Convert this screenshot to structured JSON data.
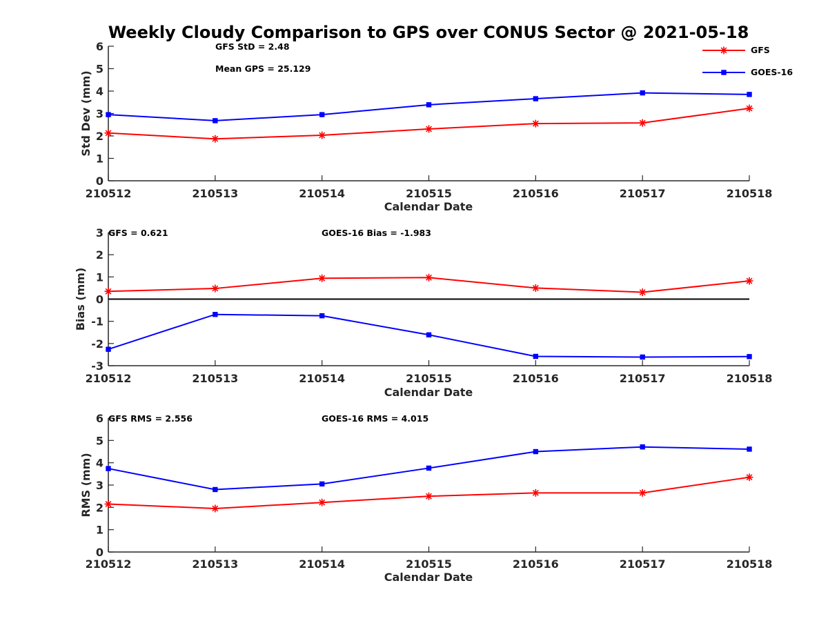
{
  "figure": {
    "title": "Weekly Cloudy Comparison to GPS over CONUS Sector @ 2021-05-18"
  },
  "legend": [
    {
      "name": "GFS",
      "color": "#ff0000",
      "marker": "asterisk"
    },
    {
      "name": "GOES-16",
      "color": "#0000ff",
      "marker": "square"
    }
  ],
  "chart_data": [
    {
      "type": "line",
      "xlabel": "Calendar Date",
      "ylabel": "Std Dev (mm)",
      "categories": [
        "210512",
        "210513",
        "210514",
        "210515",
        "210516",
        "210517",
        "210518"
      ],
      "ylim": [
        0,
        6
      ],
      "yticks": [
        "0",
        "1",
        "2",
        "3",
        "4",
        "5",
        "6"
      ],
      "annotations": [
        "GFS StD = 2.48",
        "Mean GPS = 25.129"
      ],
      "series": [
        {
          "name": "GFS",
          "color": "#ff0000",
          "marker": "asterisk",
          "values": [
            2.13,
            1.87,
            2.03,
            2.31,
            2.55,
            2.58,
            3.23
          ]
        },
        {
          "name": "GOES-16",
          "color": "#0000ff",
          "marker": "square",
          "values": [
            2.95,
            2.68,
            2.95,
            3.39,
            3.66,
            3.92,
            3.85
          ]
        }
      ],
      "zero_line": false
    },
    {
      "type": "line",
      "xlabel": "Calendar Date",
      "ylabel": "Bias (mm)",
      "categories": [
        "210512",
        "210513",
        "210514",
        "210515",
        "210516",
        "210517",
        "210518"
      ],
      "ylim": [
        -3,
        3
      ],
      "yticks": [
        "-3",
        "-2",
        "-1",
        "0",
        "1",
        "2",
        "3"
      ],
      "annotations": [
        "GFS = 0.621",
        "GOES-16 Bias  = -1.983"
      ],
      "series": [
        {
          "name": "GFS",
          "color": "#ff0000",
          "marker": "asterisk",
          "values": [
            0.35,
            0.48,
            0.94,
            0.97,
            0.5,
            0.31,
            0.82
          ]
        },
        {
          "name": "GOES-16",
          "color": "#0000ff",
          "marker": "square",
          "values": [
            -2.26,
            -0.69,
            -0.75,
            -1.61,
            -2.58,
            -2.61,
            -2.59
          ]
        }
      ],
      "zero_line": true
    },
    {
      "type": "line",
      "xlabel": "Calendar Date",
      "ylabel": "RMS (mm)",
      "categories": [
        "210512",
        "210513",
        "210514",
        "210515",
        "210516",
        "210517",
        "210518"
      ],
      "ylim": [
        0,
        6
      ],
      "yticks": [
        "0",
        "1",
        "2",
        "3",
        "4",
        "5",
        "6"
      ],
      "annotations": [
        "GFS RMS = 2.556",
        "GOES-16 RMS = 4.015"
      ],
      "series": [
        {
          "name": "GFS",
          "color": "#ff0000",
          "marker": "asterisk",
          "values": [
            2.15,
            1.95,
            2.22,
            2.5,
            2.65,
            2.65,
            3.35
          ]
        },
        {
          "name": "GOES-16",
          "color": "#0000ff",
          "marker": "square",
          "values": [
            3.74,
            2.8,
            3.05,
            3.76,
            4.5,
            4.71,
            4.61
          ]
        }
      ],
      "zero_line": false
    }
  ]
}
